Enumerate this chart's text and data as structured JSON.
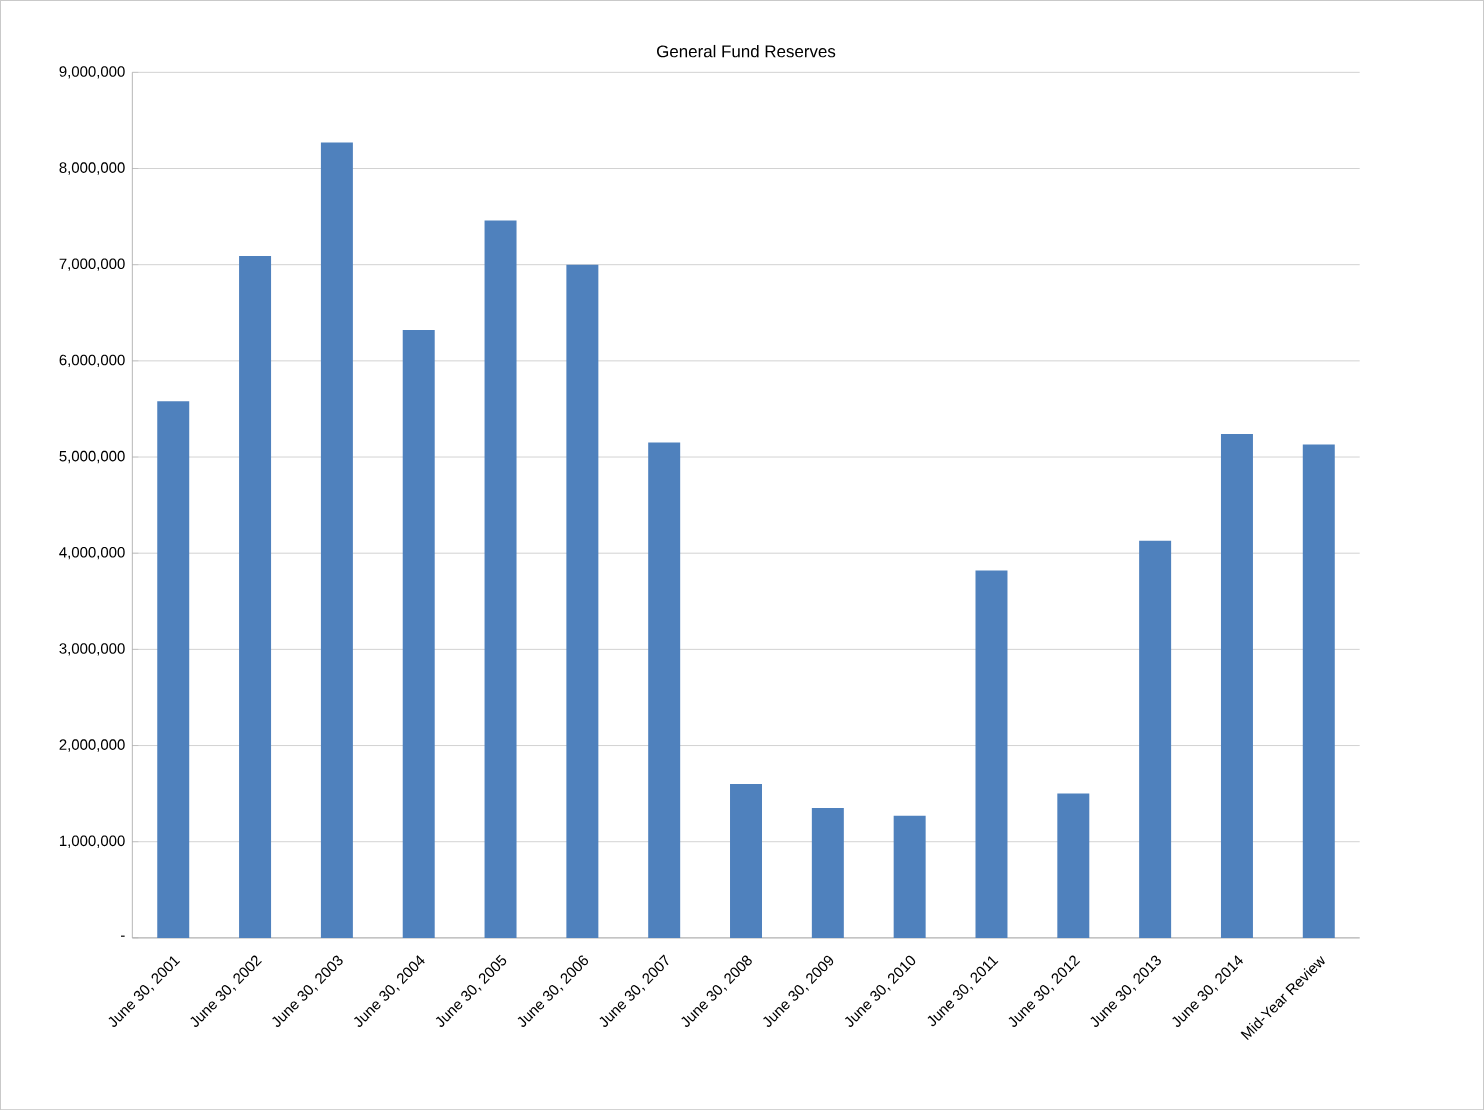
{
  "chart_data": {
    "type": "bar",
    "title": "General Fund Reserves",
    "categories": [
      "June 30, 2001",
      "June 30, 2002",
      "June 30, 2003",
      "June 30, 2004",
      "June 30, 2005",
      "June 30, 2006",
      "June 30, 2007",
      "June 30, 2008",
      "June 30, 2009",
      "June 30, 2010",
      "June 30, 2011",
      "June 30, 2012",
      "June 30, 2013",
      "June 30, 2014",
      "Mid-Year Review"
    ],
    "values": [
      5580000,
      7090000,
      8270000,
      6320000,
      7460000,
      7000000,
      5150000,
      1600000,
      1350000,
      1270000,
      3820000,
      1500000,
      4130000,
      5240000,
      5130000
    ],
    "color": "#4f81bd",
    "ylim": [
      0,
      9000000
    ],
    "yticks": [
      {
        "value": 0,
        "label": "-"
      },
      {
        "value": 1000000,
        "label": "1,000,000"
      },
      {
        "value": 2000000,
        "label": "2,000,000"
      },
      {
        "value": 3000000,
        "label": "3,000,000"
      },
      {
        "value": 4000000,
        "label": "4,000,000"
      },
      {
        "value": 5000000,
        "label": "5,000,000"
      },
      {
        "value": 6000000,
        "label": "6,000,000"
      },
      {
        "value": 7000000,
        "label": "7,000,000"
      },
      {
        "value": 8000000,
        "label": "8,000,000"
      },
      {
        "value": 9000000,
        "label": "9,000,000"
      }
    ],
    "grid": "y"
  }
}
